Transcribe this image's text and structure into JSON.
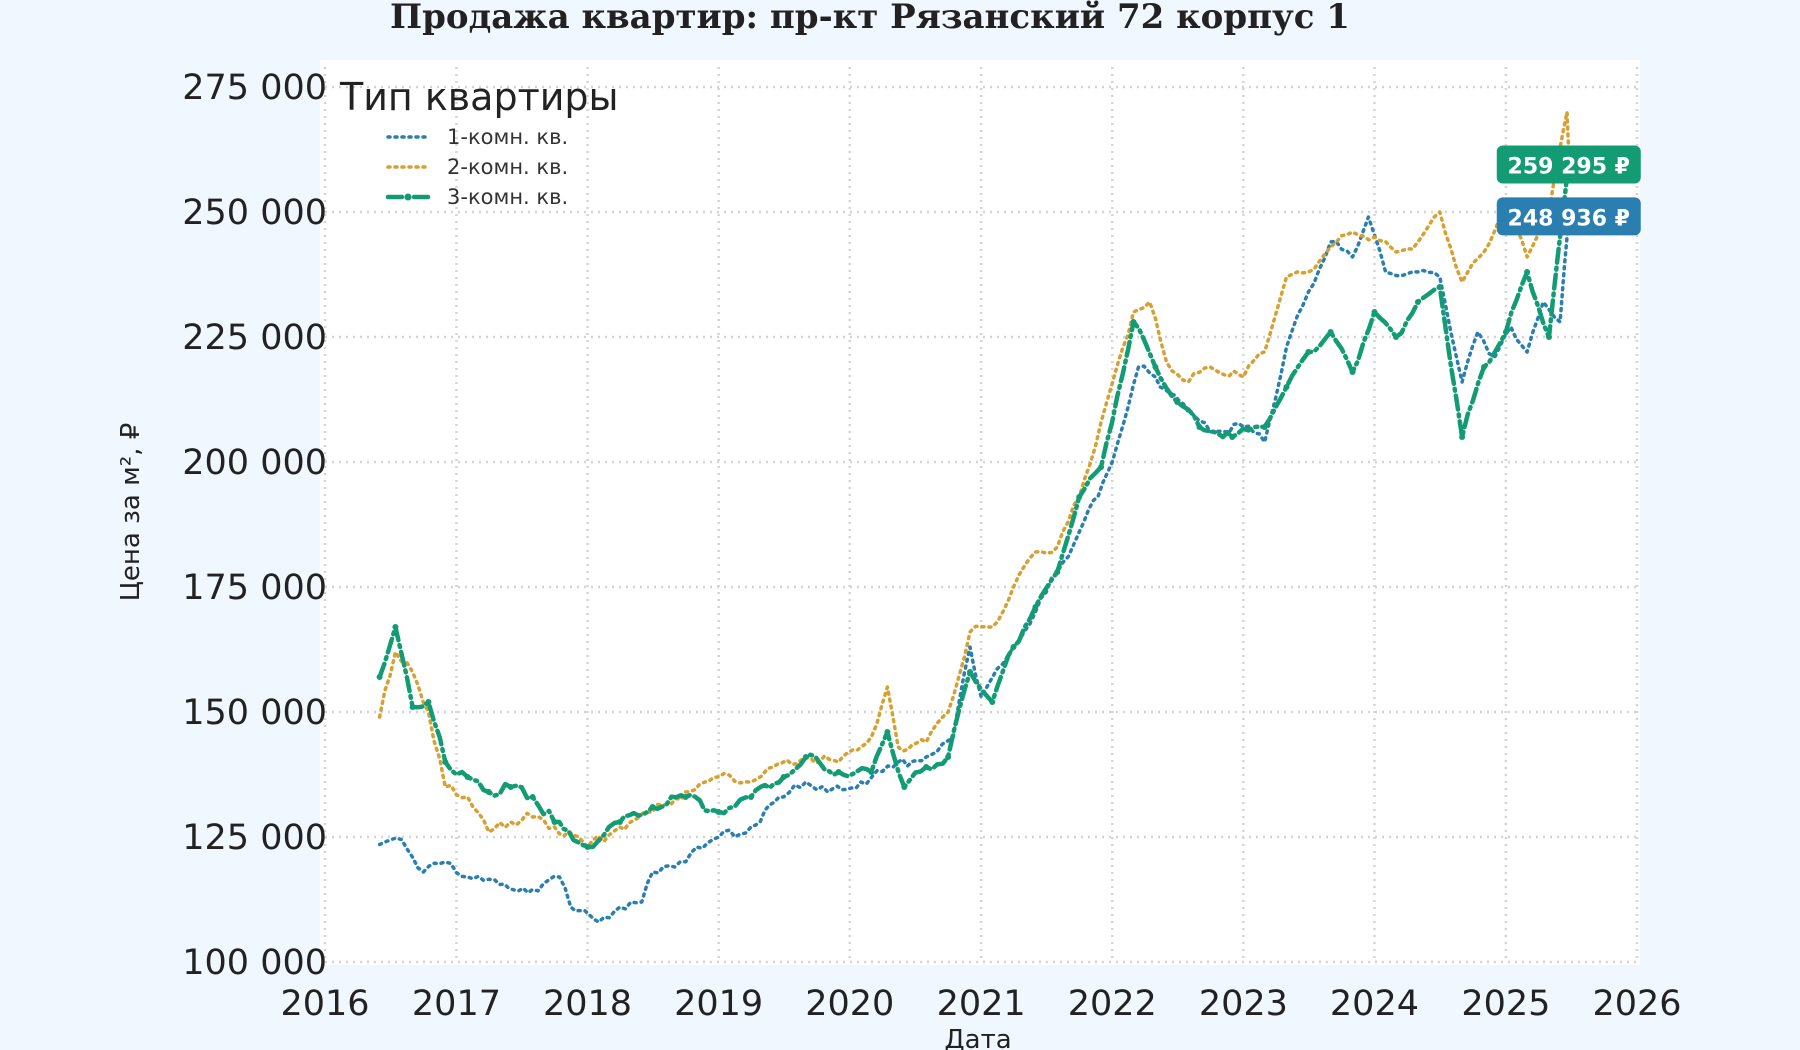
{
  "chart_data": {
    "type": "line",
    "title": "Продажа квартир: пр-кт Рязанский 72 корпус 1",
    "xlabel": "Дата",
    "ylabel": "Цена за м², ₽",
    "xlim": [
      "2016-01-01",
      "2026-01-01"
    ],
    "ylim": [
      100000,
      275000
    ],
    "x_ticks": [
      "2016",
      "2017",
      "2018",
      "2019",
      "2020",
      "2021",
      "2022",
      "2023",
      "2024",
      "2025",
      "2026"
    ],
    "y_ticks": [
      100000,
      125000,
      150000,
      175000,
      200000,
      225000,
      250000,
      275000
    ],
    "y_tick_labels": [
      "100 000",
      "125 000",
      "150 000",
      "175 000",
      "200 000",
      "225 000",
      "250 000",
      "275 000"
    ],
    "grid": true,
    "legend": {
      "title": "Тип квартиры",
      "placement": "top-left"
    },
    "series": [
      {
        "name": "1-комн. кв.",
        "color": "#2b7fb0",
        "style": "dotted",
        "points": [
          [
            "2016-06-01",
            123500
          ],
          [
            "2016-08-01",
            124500
          ],
          [
            "2016-10-01",
            118000
          ],
          [
            "2016-12-01",
            120000
          ],
          [
            "2017-02-01",
            117000
          ],
          [
            "2017-05-01",
            115500
          ],
          [
            "2017-08-01",
            114500
          ],
          [
            "2017-10-15",
            117000
          ],
          [
            "2017-11-15",
            111000
          ],
          [
            "2018-02-01",
            108000
          ],
          [
            "2018-04-01",
            111000
          ],
          [
            "2018-06-01",
            112000
          ],
          [
            "2018-07-01",
            118000
          ],
          [
            "2018-09-01",
            119000
          ],
          [
            "2018-11-01",
            123000
          ],
          [
            "2019-01-01",
            125000
          ],
          [
            "2019-04-01",
            127000
          ],
          [
            "2019-07-01",
            133000
          ],
          [
            "2019-09-01",
            136000
          ],
          [
            "2019-11-01",
            134000
          ],
          [
            "2020-02-01",
            136000
          ],
          [
            "2020-05-01",
            139000
          ],
          [
            "2020-08-01",
            141000
          ],
          [
            "2020-10-15",
            145000
          ],
          [
            "2020-12-01",
            163000
          ],
          [
            "2021-01-01",
            153000
          ],
          [
            "2021-04-01",
            163000
          ],
          [
            "2021-06-01",
            170000
          ],
          [
            "2021-08-01",
            178000
          ],
          [
            "2021-10-01",
            186000
          ],
          [
            "2022-01-01",
            200000
          ],
          [
            "2022-03-15",
            219000
          ],
          [
            "2022-05-01",
            217000
          ],
          [
            "2022-08-01",
            210000
          ],
          [
            "2022-10-01",
            206000
          ],
          [
            "2023-01-01",
            207000
          ],
          [
            "2023-03-01",
            204000
          ],
          [
            "2023-05-01",
            223000
          ],
          [
            "2023-07-01",
            234000
          ],
          [
            "2023-09-01",
            244000
          ],
          [
            "2023-11-01",
            241000
          ],
          [
            "2023-12-15",
            249000
          ],
          [
            "2024-02-01",
            238000
          ],
          [
            "2024-05-01",
            238000
          ],
          [
            "2024-07-01",
            237000
          ],
          [
            "2024-09-01",
            216000
          ],
          [
            "2024-10-15",
            226000
          ],
          [
            "2024-12-01",
            221000
          ],
          [
            "2025-01-15",
            227000
          ],
          [
            "2025-03-01",
            222000
          ],
          [
            "2025-04-15",
            232000
          ],
          [
            "2025-06-01",
            228000
          ],
          [
            "2025-06-25",
            248936
          ]
        ],
        "last_value_label": "248 936 ₽"
      },
      {
        "name": "2-комн. кв.",
        "color": "#d6a032",
        "style": "dotted",
        "points": [
          [
            "2016-06-01",
            149000
          ],
          [
            "2016-07-15",
            162000
          ],
          [
            "2016-09-01",
            158000
          ],
          [
            "2016-10-15",
            150000
          ],
          [
            "2016-12-01",
            135000
          ],
          [
            "2017-02-01",
            133000
          ],
          [
            "2017-04-01",
            126000
          ],
          [
            "2017-06-01",
            128000
          ],
          [
            "2017-08-01",
            129000
          ],
          [
            "2017-10-01",
            127000
          ],
          [
            "2018-01-01",
            123000
          ],
          [
            "2018-04-01",
            127000
          ],
          [
            "2018-07-01",
            130000
          ],
          [
            "2018-10-01",
            134000
          ],
          [
            "2019-01-01",
            137000
          ],
          [
            "2019-04-01",
            136000
          ],
          [
            "2019-06-01",
            139000
          ],
          [
            "2019-09-01",
            141000
          ],
          [
            "2019-12-01",
            140000
          ],
          [
            "2020-03-01",
            145000
          ],
          [
            "2020-04-15",
            155000
          ],
          [
            "2020-05-15",
            143000
          ],
          [
            "2020-08-01",
            144000
          ],
          [
            "2020-10-01",
            150000
          ],
          [
            "2020-12-01",
            166000
          ],
          [
            "2021-02-01",
            167000
          ],
          [
            "2021-04-01",
            175000
          ],
          [
            "2021-06-01",
            182000
          ],
          [
            "2021-08-01",
            183000
          ],
          [
            "2021-10-01",
            193000
          ],
          [
            "2021-12-01",
            208000
          ],
          [
            "2022-03-01",
            230000
          ],
          [
            "2022-04-15",
            232000
          ],
          [
            "2022-06-01",
            220000
          ],
          [
            "2022-08-01",
            216000
          ],
          [
            "2022-10-01",
            219000
          ],
          [
            "2023-01-01",
            217000
          ],
          [
            "2023-03-01",
            222000
          ],
          [
            "2023-05-01",
            237000
          ],
          [
            "2023-07-01",
            238000
          ],
          [
            "2023-09-01",
            243000
          ],
          [
            "2023-11-01",
            246000
          ],
          [
            "2024-01-01",
            245000
          ],
          [
            "2024-03-01",
            242000
          ],
          [
            "2024-05-01",
            244000
          ],
          [
            "2024-07-01",
            250000
          ],
          [
            "2024-09-01",
            236000
          ],
          [
            "2024-11-01",
            242000
          ],
          [
            "2025-01-01",
            252000
          ],
          [
            "2025-03-01",
            241000
          ],
          [
            "2025-05-01",
            250000
          ],
          [
            "2025-06-20",
            270000
          ],
          [
            "2025-06-25",
            262000
          ]
        ],
        "last_value_label": ""
      },
      {
        "name": "3-комн. кв.",
        "color": "#139c74",
        "style": "dash-dot",
        "points": [
          [
            "2016-06-01",
            157000
          ],
          [
            "2016-07-15",
            167000
          ],
          [
            "2016-09-01",
            151000
          ],
          [
            "2016-10-15",
            152000
          ],
          [
            "2016-12-01",
            140000
          ],
          [
            "2017-02-01",
            137000
          ],
          [
            "2017-04-01",
            134000
          ],
          [
            "2017-06-01",
            135000
          ],
          [
            "2017-08-01",
            133000
          ],
          [
            "2017-10-01",
            128000
          ],
          [
            "2018-01-01",
            123000
          ],
          [
            "2018-04-01",
            128000
          ],
          [
            "2018-07-01",
            131000
          ],
          [
            "2018-10-01",
            133000
          ],
          [
            "2019-01-01",
            130000
          ],
          [
            "2019-04-01",
            133000
          ],
          [
            "2019-07-01",
            137000
          ],
          [
            "2019-09-01",
            141000
          ],
          [
            "2019-12-01",
            138000
          ],
          [
            "2020-03-01",
            138000
          ],
          [
            "2020-04-15",
            146000
          ],
          [
            "2020-06-01",
            135000
          ],
          [
            "2020-08-01",
            139000
          ],
          [
            "2020-10-01",
            141000
          ],
          [
            "2020-12-01",
            158000
          ],
          [
            "2021-02-01",
            152000
          ],
          [
            "2021-04-01",
            163000
          ],
          [
            "2021-06-01",
            171000
          ],
          [
            "2021-08-01",
            178000
          ],
          [
            "2021-10-01",
            193000
          ],
          [
            "2021-12-01",
            199000
          ],
          [
            "2022-03-01",
            228000
          ],
          [
            "2022-05-01",
            219000
          ],
          [
            "2022-07-01",
            212000
          ],
          [
            "2022-09-01",
            207000
          ],
          [
            "2022-12-01",
            205000
          ],
          [
            "2023-03-01",
            207000
          ],
          [
            "2023-05-01",
            215000
          ],
          [
            "2023-07-01",
            222000
          ],
          [
            "2023-09-01",
            226000
          ],
          [
            "2023-11-01",
            218000
          ],
          [
            "2024-01-01",
            230000
          ],
          [
            "2024-03-01",
            225000
          ],
          [
            "2024-05-01",
            232000
          ],
          [
            "2024-07-01",
            235000
          ],
          [
            "2024-09-01",
            205000
          ],
          [
            "2024-11-01",
            219000
          ],
          [
            "2025-01-01",
            226000
          ],
          [
            "2025-03-01",
            238000
          ],
          [
            "2025-05-01",
            225000
          ],
          [
            "2025-06-20",
            257000
          ],
          [
            "2025-06-25",
            259295
          ]
        ],
        "last_value_label": "259 295 ₽"
      }
    ]
  }
}
